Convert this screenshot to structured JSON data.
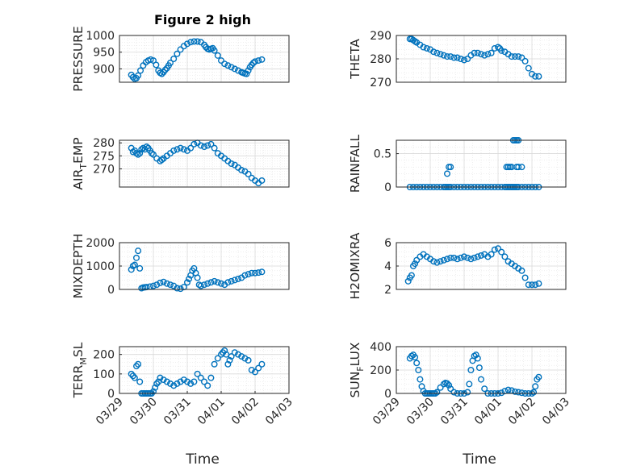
{
  "figure": {
    "title": "Figure 2 high",
    "xlabel": "Time"
  },
  "colors": {
    "marker": "#0072BD",
    "axes": "#262626",
    "grid": "#d9d9d9"
  },
  "chart_data": [
    {
      "type": "scatter",
      "title": "Figure 2 high",
      "ylabel": "PRESSURE",
      "ylim": [
        860,
        1000
      ],
      "yticks": [
        "1000",
        "950",
        "900"
      ],
      "ytick_values": [
        1000,
        950,
        900
      ],
      "xlim": [
        "03/29",
        "04/03"
      ],
      "xticks": [],
      "grid": true,
      "minor_grid": true,
      "marker": "o",
      "x": [
        0.35,
        0.4,
        0.45,
        0.5,
        0.55,
        0.62,
        0.7,
        0.78,
        0.85,
        0.92,
        1.0,
        1.08,
        1.15,
        1.2,
        1.25,
        1.3,
        1.35,
        1.4,
        1.45,
        1.5,
        1.6,
        1.7,
        1.8,
        1.9,
        2.0,
        2.1,
        2.2,
        2.3,
        2.4,
        2.5,
        2.55,
        2.6,
        2.65,
        2.7,
        2.75,
        2.8,
        2.9,
        3.0,
        3.1,
        3.2,
        3.3,
        3.4,
        3.5,
        3.6,
        3.65,
        3.7,
        3.75,
        3.8,
        3.85,
        3.9,
        3.95,
        4.0,
        4.1,
        4.2
      ],
      "y": [
        882,
        875,
        870,
        872,
        880,
        895,
        910,
        920,
        925,
        928,
        925,
        912,
        895,
        888,
        885,
        890,
        897,
        902,
        910,
        918,
        930,
        945,
        958,
        968,
        975,
        980,
        982,
        982,
        980,
        972,
        965,
        960,
        958,
        960,
        962,
        955,
        940,
        925,
        915,
        910,
        905,
        900,
        895,
        890,
        888,
        886,
        885,
        895,
        905,
        912,
        918,
        922,
        925,
        928
      ]
    },
    {
      "type": "scatter",
      "ylabel": "THETA",
      "ylim": [
        270,
        290
      ],
      "yticks": [
        "290",
        "280",
        "270"
      ],
      "ytick_values": [
        290,
        280,
        270
      ],
      "xlim": [
        "03/29",
        "04/03"
      ],
      "xticks": [],
      "grid": true,
      "minor_grid": true,
      "marker": "o",
      "x": [
        0.4,
        0.45,
        0.5,
        0.55,
        0.6,
        0.7,
        0.8,
        0.9,
        1.0,
        1.1,
        1.2,
        1.3,
        1.4,
        1.5,
        1.6,
        1.7,
        1.8,
        1.9,
        2.0,
        2.1,
        2.2,
        2.3,
        2.4,
        2.5,
        2.6,
        2.7,
        2.8,
        2.9,
        3.0,
        3.05,
        3.1,
        3.2,
        3.3,
        3.4,
        3.5,
        3.6,
        3.7,
        3.8,
        3.9,
        4.0,
        4.1,
        4.2
      ],
      "y": [
        288.5,
        288.5,
        288,
        287.5,
        287,
        286,
        285,
        284.5,
        284,
        283,
        282.5,
        282,
        281.5,
        281,
        281,
        280.5,
        280.5,
        280,
        279.5,
        280,
        281.5,
        282.5,
        282.5,
        282,
        281.5,
        282,
        282.5,
        284.5,
        285,
        284.5,
        283.5,
        283,
        282,
        281,
        281,
        281,
        280.5,
        279,
        276,
        273.5,
        272.5,
        272.5
      ]
    },
    {
      "type": "scatter",
      "ylabel": "AIR_TEMP",
      "ylabel_main": "AIR",
      "ylabel_sub": "T",
      "ylabel_rest": "EMP",
      "ylim": [
        263,
        281
      ],
      "yticks": [
        "280",
        "275",
        "270"
      ],
      "ytick_values": [
        280,
        275,
        270
      ],
      "xlim": [
        "03/29",
        "04/03"
      ],
      "xticks": [],
      "grid": true,
      "minor_grid": true,
      "marker": "o",
      "x": [
        0.35,
        0.4,
        0.45,
        0.5,
        0.55,
        0.6,
        0.65,
        0.7,
        0.75,
        0.8,
        0.85,
        0.9,
        0.95,
        1.0,
        1.1,
        1.2,
        1.25,
        1.3,
        1.4,
        1.5,
        1.6,
        1.7,
        1.8,
        1.9,
        2.0,
        2.1,
        2.2,
        2.3,
        2.4,
        2.5,
        2.6,
        2.7,
        2.8,
        2.9,
        3.0,
        3.1,
        3.2,
        3.3,
        3.4,
        3.5,
        3.6,
        3.7,
        3.8,
        3.9,
        4.0,
        4.1,
        4.2
      ],
      "y": [
        278,
        276.5,
        277,
        276,
        275.5,
        276,
        277.5,
        278,
        277.5,
        278.5,
        278,
        277,
        276,
        275.5,
        274,
        273,
        273.5,
        274,
        275,
        276,
        277,
        277.5,
        278,
        277.5,
        277,
        278,
        279.5,
        280,
        279,
        278.5,
        279,
        279.5,
        278,
        276,
        275,
        274,
        273,
        272,
        271.5,
        270.5,
        269.5,
        269,
        268,
        266.5,
        265.5,
        264.5,
        265.5
      ]
    },
    {
      "type": "scatter",
      "ylabel": "RAINFALL",
      "ylim": [
        0,
        0.7
      ],
      "yticks": [
        "0.5",
        "0"
      ],
      "ytick_values": [
        0.5,
        0
      ],
      "xlim": [
        "03/29",
        "04/03"
      ],
      "xticks": [],
      "grid": true,
      "minor_grid": true,
      "marker": "o",
      "x": [
        0.4,
        0.5,
        0.6,
        0.7,
        0.8,
        0.9,
        1.0,
        1.1,
        1.2,
        1.3,
        1.4,
        1.45,
        1.5,
        1.55,
        1.6,
        1.5,
        1.55,
        1.6,
        1.7,
        1.8,
        1.9,
        2.0,
        2.1,
        2.2,
        2.3,
        2.4,
        2.5,
        2.6,
        2.7,
        2.8,
        2.9,
        3.0,
        3.1,
        3.2,
        3.25,
        3.3,
        3.35,
        3.4,
        3.25,
        3.3,
        3.35,
        3.4,
        3.45,
        3.5,
        3.55,
        3.6,
        3.45,
        3.5,
        3.55,
        3.6,
        3.7,
        3.55,
        3.6,
        3.7,
        3.8,
        3.9,
        4.0,
        4.1,
        4.2
      ],
      "y": [
        0,
        0,
        0,
        0,
        0,
        0,
        0,
        0,
        0,
        0,
        0,
        0,
        0,
        0,
        0,
        0.2,
        0.3,
        0.3,
        0,
        0,
        0,
        0,
        0,
        0,
        0,
        0,
        0,
        0,
        0,
        0,
        0,
        0,
        0,
        0,
        0.3,
        0.3,
        0.3,
        0.3,
        0,
        0,
        0,
        0,
        0.7,
        0.7,
        0.7,
        0.7,
        0,
        0,
        0,
        0,
        0,
        0.3,
        0.3,
        0.3,
        0,
        0,
        0,
        0,
        0
      ]
    },
    {
      "type": "scatter",
      "ylabel": "MIXDEPTH",
      "ylim": [
        0,
        2000
      ],
      "yticks": [
        "2000",
        "1000",
        "0"
      ],
      "ytick_values": [
        2000,
        1000,
        0
      ],
      "xlim": [
        "03/29",
        "04/03"
      ],
      "xticks": [],
      "grid": true,
      "minor_grid": true,
      "marker": "o",
      "x": [
        0.35,
        0.4,
        0.45,
        0.5,
        0.55,
        0.6,
        0.65,
        0.7,
        0.75,
        0.8,
        0.9,
        1.0,
        1.1,
        1.2,
        1.3,
        1.4,
        1.5,
        1.6,
        1.7,
        1.8,
        1.9,
        2.0,
        2.05,
        2.1,
        2.15,
        2.2,
        2.25,
        2.3,
        2.35,
        2.4,
        2.5,
        2.6,
        2.7,
        2.8,
        2.9,
        3.0,
        3.1,
        3.2,
        3.3,
        3.4,
        3.5,
        3.6,
        3.7,
        3.8,
        3.9,
        4.0,
        4.1,
        4.2
      ],
      "y": [
        850,
        1000,
        1050,
        1350,
        1650,
        900,
        50,
        80,
        90,
        100,
        120,
        150,
        200,
        280,
        320,
        250,
        200,
        150,
        50,
        30,
        100,
        300,
        450,
        600,
        800,
        900,
        700,
        500,
        200,
        150,
        200,
        250,
        300,
        350,
        300,
        250,
        200,
        300,
        350,
        400,
        450,
        500,
        600,
        650,
        700,
        700,
        720,
        750
      ]
    },
    {
      "type": "scatter",
      "ylabel": "H2OMIXRA",
      "ylim": [
        2,
        6
      ],
      "yticks": [
        "6",
        "4",
        "2"
      ],
      "ytick_values": [
        6,
        4,
        2
      ],
      "xlim": [
        "03/29",
        "04/03"
      ],
      "xticks": [],
      "grid": true,
      "minor_grid": true,
      "marker": "o",
      "x": [
        0.35,
        0.4,
        0.45,
        0.5,
        0.55,
        0.6,
        0.7,
        0.8,
        0.9,
        1.0,
        1.1,
        1.2,
        1.3,
        1.4,
        1.5,
        1.6,
        1.7,
        1.8,
        1.9,
        2.0,
        2.1,
        2.2,
        2.3,
        2.4,
        2.5,
        2.6,
        2.7,
        2.8,
        2.9,
        3.0,
        3.1,
        3.2,
        3.3,
        3.4,
        3.5,
        3.6,
        3.7,
        3.8,
        3.9,
        4.0,
        4.1,
        4.2
      ],
      "y": [
        2.7,
        3.0,
        3.2,
        4.0,
        4.2,
        4.5,
        4.8,
        5.0,
        4.8,
        4.6,
        4.4,
        4.3,
        4.4,
        4.5,
        4.6,
        4.7,
        4.7,
        4.6,
        4.7,
        4.8,
        4.7,
        4.6,
        4.7,
        4.8,
        4.9,
        5.0,
        4.8,
        5.0,
        5.4,
        5.5,
        5.2,
        4.8,
        4.4,
        4.2,
        4.0,
        3.8,
        3.6,
        3.0,
        2.4,
        2.4,
        2.4,
        2.5
      ]
    },
    {
      "type": "scatter",
      "ylabel": "TERR_MSL",
      "ylabel_main": "TERR",
      "ylabel_sub": "M",
      "ylabel_rest": "SL",
      "ylim": [
        0,
        240
      ],
      "yticks": [
        "200",
        "100",
        "0"
      ],
      "ytick_values": [
        200,
        100,
        0
      ],
      "xlim": [
        "03/29",
        "04/03"
      ],
      "xticks": [
        "03/29",
        "03/30",
        "03/31",
        "04/01",
        "04/02",
        "04/03"
      ],
      "xtick_values": [
        0,
        1,
        2,
        3,
        4,
        5
      ],
      "grid": true,
      "minor_grid": true,
      "marker": "o",
      "x": [
        0.35,
        0.4,
        0.45,
        0.5,
        0.55,
        0.6,
        0.65,
        0.7,
        0.75,
        0.8,
        0.85,
        0.9,
        0.95,
        1.0,
        1.05,
        1.1,
        1.15,
        1.2,
        1.3,
        1.4,
        1.5,
        1.6,
        1.7,
        1.8,
        1.9,
        2.0,
        2.1,
        2.2,
        2.3,
        2.4,
        2.5,
        2.6,
        2.7,
        2.8,
        2.9,
        3.0,
        3.05,
        3.1,
        3.15,
        3.2,
        3.25,
        3.3,
        3.4,
        3.5,
        3.6,
        3.7,
        3.8,
        3.9,
        4.0,
        4.1,
        4.2
      ],
      "y": [
        100,
        90,
        80,
        140,
        150,
        60,
        0,
        0,
        0,
        0,
        0,
        0,
        0,
        10,
        30,
        50,
        60,
        80,
        70,
        60,
        50,
        40,
        50,
        60,
        70,
        60,
        50,
        60,
        100,
        80,
        60,
        40,
        80,
        150,
        180,
        200,
        210,
        220,
        200,
        150,
        170,
        190,
        210,
        200,
        190,
        180,
        170,
        120,
        110,
        130,
        150
      ]
    },
    {
      "type": "scatter",
      "ylabel": "SUN_FLUX",
      "ylabel_main": "SUN",
      "ylabel_sub": "F",
      "ylabel_rest": "LUX",
      "ylim": [
        0,
        400
      ],
      "yticks": [
        "400",
        "200",
        "0"
      ],
      "ytick_values": [
        400,
        200,
        0
      ],
      "xlim": [
        "03/29",
        "04/03"
      ],
      "xticks": [
        "03/29",
        "03/30",
        "03/31",
        "04/01",
        "04/02",
        "04/03"
      ],
      "xtick_values": [
        0,
        1,
        2,
        3,
        4,
        5
      ],
      "grid": true,
      "minor_grid": true,
      "marker": "o",
      "x": [
        0.4,
        0.45,
        0.5,
        0.55,
        0.6,
        0.65,
        0.7,
        0.75,
        0.8,
        0.85,
        0.9,
        0.95,
        1.0,
        1.05,
        1.1,
        1.15,
        1.2,
        1.3,
        1.4,
        1.45,
        1.5,
        1.55,
        1.6,
        1.7,
        1.8,
        1.9,
        2.0,
        2.1,
        2.15,
        2.2,
        2.25,
        2.3,
        2.35,
        2.4,
        2.45,
        2.5,
        2.6,
        2.7,
        2.8,
        2.9,
        3.0,
        3.1,
        3.2,
        3.3,
        3.4,
        3.5,
        3.6,
        3.7,
        3.8,
        3.9,
        4.0,
        4.05,
        4.1,
        4.15,
        4.2
      ],
      "y": [
        300,
        320,
        330,
        310,
        260,
        200,
        120,
        60,
        20,
        0,
        0,
        0,
        0,
        0,
        0,
        0,
        10,
        50,
        80,
        90,
        85,
        70,
        40,
        10,
        0,
        0,
        0,
        10,
        80,
        200,
        280,
        320,
        330,
        300,
        220,
        120,
        40,
        0,
        0,
        0,
        0,
        5,
        20,
        30,
        25,
        15,
        10,
        5,
        0,
        0,
        0,
        10,
        60,
        120,
        140
      ]
    }
  ]
}
